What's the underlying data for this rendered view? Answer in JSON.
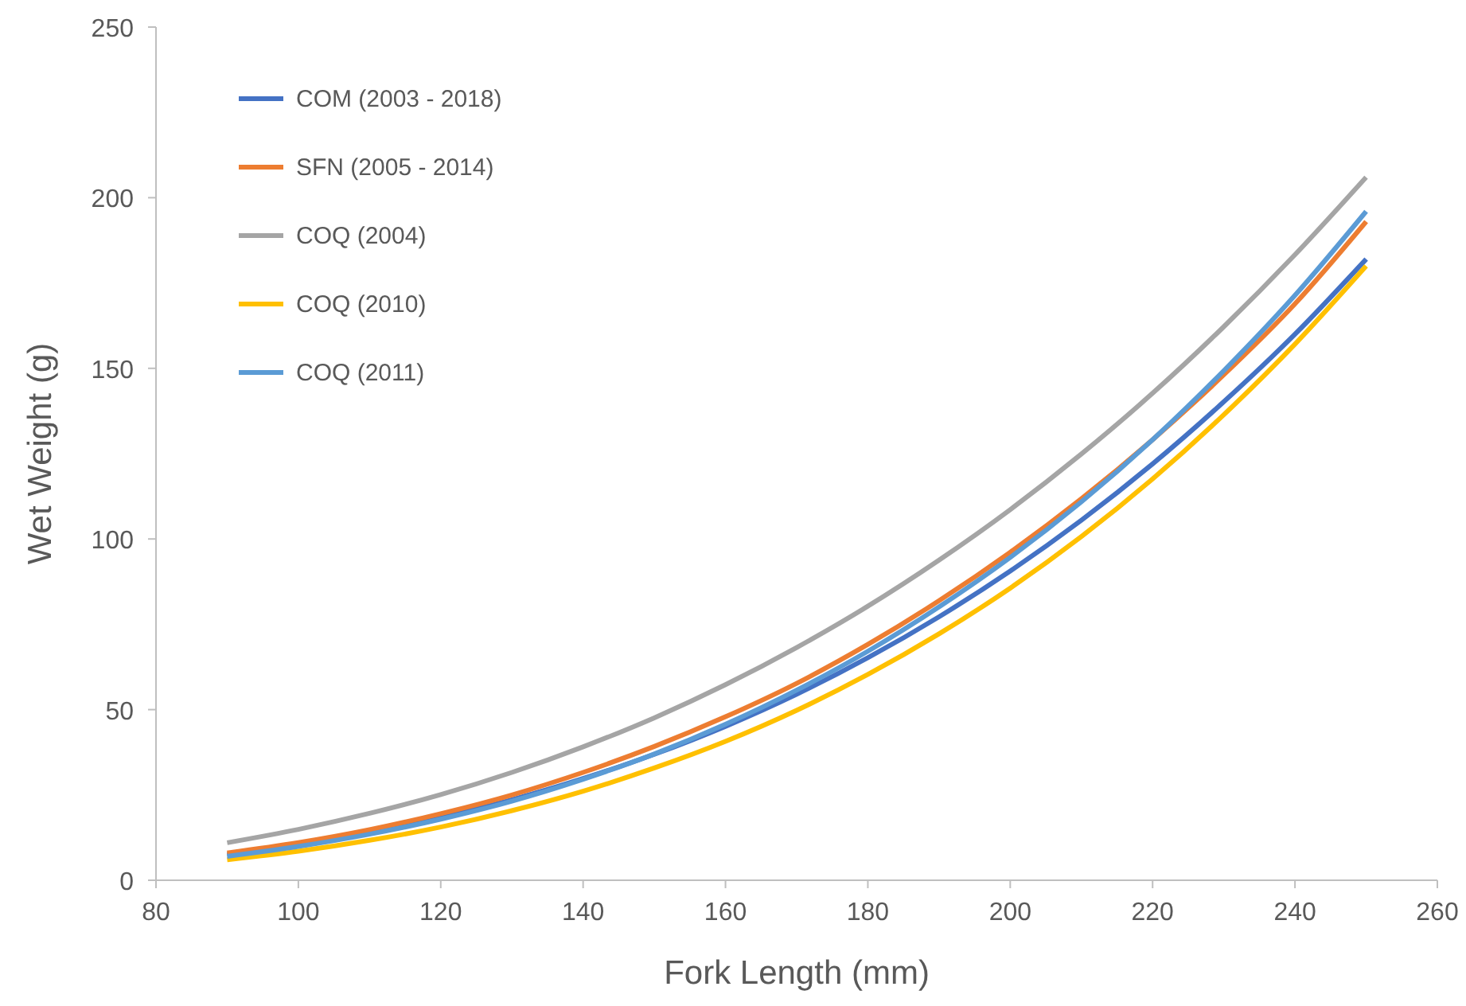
{
  "chart_data": {
    "type": "line",
    "xlabel": "Fork Length (mm)",
    "ylabel": "Wet Weight (g)",
    "x": [
      90,
      100,
      110,
      120,
      130,
      140,
      150,
      160,
      170,
      180,
      190,
      200,
      210,
      220,
      230,
      240,
      250
    ],
    "series": [
      {
        "name": "COM (2003 - 2018)",
        "color": "#4472c4",
        "values": [
          7.5,
          10.4,
          14.0,
          18.4,
          23.6,
          29.8,
          36.9,
          45.1,
          54.5,
          65.2,
          77.2,
          90.6,
          105.5,
          122.0,
          140.2,
          160.0,
          182
        ]
      },
      {
        "name": "SFN (2005 - 2014)",
        "color": "#ed7d31",
        "values": [
          8,
          11.0,
          14.8,
          19.5,
          25.0,
          31.6,
          39.2,
          47.9,
          57.7,
          69.1,
          81.9,
          96.1,
          111.8,
          129.1,
          148.1,
          168.9,
          193
        ]
      },
      {
        "name": "COQ (2004)",
        "color": "#a5a5a5",
        "values": [
          11,
          14.9,
          19.6,
          25.1,
          31.6,
          39.1,
          47.6,
          57.3,
          68.2,
          80.3,
          93.8,
          108.6,
          124.9,
          142.7,
          162.2,
          183.3,
          206
        ]
      },
      {
        "name": "COQ (2010)",
        "color": "#ffc000",
        "values": [
          6,
          8.5,
          11.7,
          15.6,
          20.4,
          26.1,
          32.9,
          40.7,
          49.8,
          60.3,
          72.2,
          85.6,
          100.7,
          117.6,
          136.4,
          157.1,
          180
        ]
      },
      {
        "name": "COQ (2011)",
        "color": "#5b9bd5",
        "values": [
          7,
          9.9,
          13.5,
          17.9,
          23.2,
          29.6,
          37.0,
          45.7,
          55.7,
          67.1,
          80.1,
          94.6,
          110.9,
          129.1,
          149.3,
          171.4,
          196
        ]
      }
    ],
    "xlim": [
      80,
      260
    ],
    "xticks": [
      80,
      100,
      120,
      140,
      160,
      180,
      200,
      220,
      240,
      260
    ],
    "ylim": [
      0,
      250
    ],
    "yticks": [
      0,
      50,
      100,
      150,
      200,
      250
    ],
    "grid": false,
    "legend": "top left",
    "marker": "none",
    "line_style": "solid"
  }
}
